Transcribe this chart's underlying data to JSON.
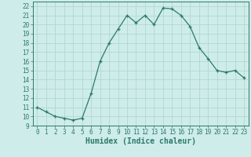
{
  "x": [
    0,
    1,
    2,
    3,
    4,
    5,
    6,
    7,
    8,
    9,
    10,
    11,
    12,
    13,
    14,
    15,
    16,
    17,
    18,
    19,
    20,
    21,
    22,
    23
  ],
  "y": [
    11.0,
    10.5,
    10.0,
    9.8,
    9.6,
    9.8,
    12.5,
    16.0,
    18.0,
    19.5,
    21.0,
    20.2,
    21.0,
    20.0,
    21.8,
    21.7,
    21.0,
    19.8,
    17.5,
    16.3,
    15.0,
    14.8,
    15.0,
    14.2
  ],
  "xlabel": "Humidex (Indice chaleur)",
  "line_color": "#2d7a6a",
  "marker": "+",
  "marker_color": "#2d7a6a",
  "bg_color": "#ceecea",
  "grid_color": "#b0d8d0",
  "xlim": [
    -0.5,
    23.5
  ],
  "ylim": [
    9.0,
    22.5
  ],
  "yticks": [
    9,
    10,
    11,
    12,
    13,
    14,
    15,
    16,
    17,
    18,
    19,
    20,
    21,
    22
  ],
  "xticks": [
    0,
    1,
    2,
    3,
    4,
    5,
    6,
    7,
    8,
    9,
    10,
    11,
    12,
    13,
    14,
    15,
    16,
    17,
    18,
    19,
    20,
    21,
    22,
    23
  ],
  "tick_fontsize": 5.5,
  "xlabel_fontsize": 7.0
}
